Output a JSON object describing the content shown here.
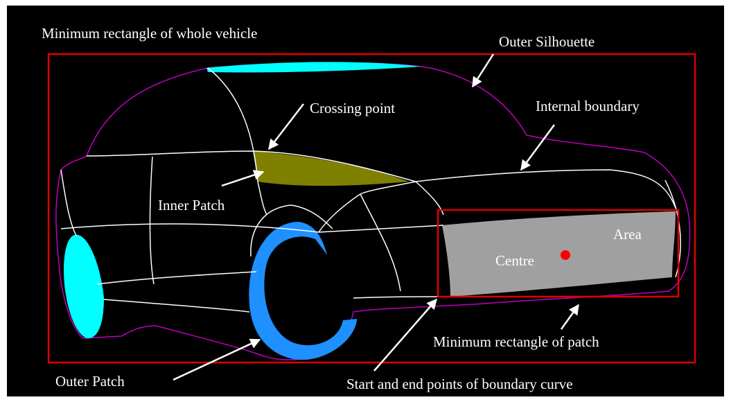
{
  "labels": {
    "min_rect_vehicle": "Minimum rectangle of whole vehicle",
    "outer_silhouette": "Outer Silhouette",
    "crossing_point": "Crossing point",
    "internal_boundary": "Internal boundary",
    "inner_patch": "Inner Patch",
    "area": "Area",
    "centre": "Centre",
    "min_rect_patch": "Minimum rectangle of patch",
    "outer_patch": "Outer Patch",
    "start_end_points": "Start and end points of boundary curve"
  }
}
